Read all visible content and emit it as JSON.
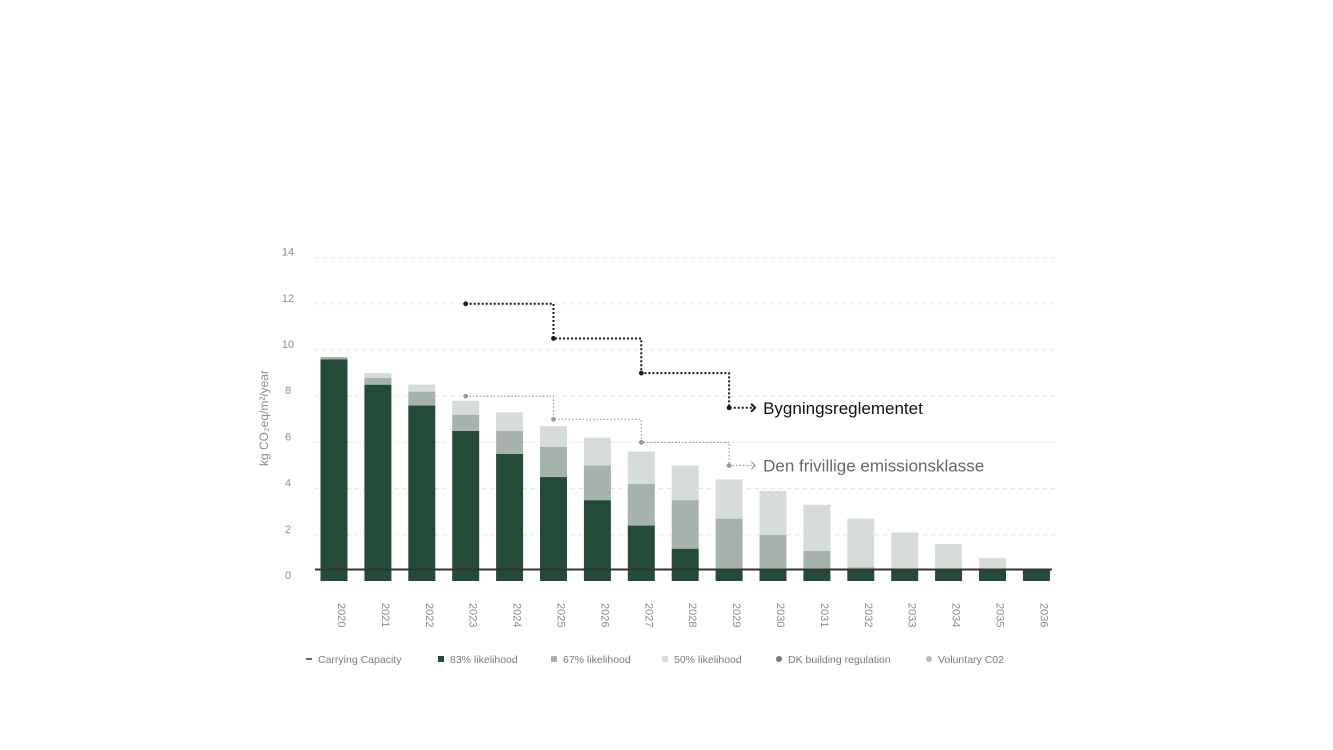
{
  "chart_data": {
    "type": "bar",
    "stacked": true,
    "ylabel": "kg CO₂eq/m²/year",
    "xlabel": "",
    "ylim": [
      0,
      14
    ],
    "yticks": [
      0,
      2,
      4,
      6,
      8,
      10,
      12,
      14
    ],
    "grid": true,
    "categories": [
      "2020",
      "2021",
      "2022",
      "2023",
      "2024",
      "2025",
      "2026",
      "2027",
      "2028",
      "2029",
      "2030",
      "2031",
      "2032",
      "2033",
      "2034",
      "2035",
      "2036"
    ],
    "series": [
      {
        "name": "83% likelihood",
        "color": "#244a38",
        "values": [
          9.6,
          8.5,
          7.6,
          6.5,
          5.5,
          4.5,
          3.5,
          2.4,
          1.4,
          0.5,
          0.5,
          0.5,
          0.5,
          0.5,
          0.5,
          0.5,
          0.5
        ]
      },
      {
        "name": "67% likelihood",
        "color": "#a6b3ad",
        "values": [
          0.1,
          0.3,
          0.6,
          0.7,
          1.0,
          1.3,
          1.5,
          1.8,
          2.1,
          2.2,
          1.5,
          0.8,
          0.1,
          0.0,
          0.0,
          0.0,
          0.0
        ]
      },
      {
        "name": "50% likelihood",
        "color": "#d6ddd9",
        "values": [
          0.0,
          0.2,
          0.3,
          0.6,
          0.8,
          0.9,
          1.2,
          1.4,
          1.5,
          1.7,
          1.9,
          2.0,
          2.1,
          1.6,
          1.1,
          0.5,
          0.0
        ]
      }
    ],
    "carrying_capacity": {
      "name": "Carrying Capacity",
      "value": 0.5,
      "color": "#333333"
    },
    "dk_building_regulation": {
      "name": "DK building regulation",
      "color": "#1a1a1a",
      "x": [
        "2023",
        "2025",
        "2027",
        "2029"
      ],
      "values": [
        12.0,
        10.5,
        9.0,
        7.5
      ],
      "annotation": "Bygningsreglementet"
    },
    "voluntary_co2": {
      "name": "Voluntary C02",
      "color": "#9a9a9a",
      "x": [
        "2023",
        "2025",
        "2027",
        "2029"
      ],
      "values": [
        8.0,
        7.0,
        6.0,
        5.0
      ],
      "annotation": "Den frivillige emissionsklasse"
    },
    "legend_position": "bottom",
    "legend": [
      {
        "label": "Carrying Capacity",
        "marker": "line",
        "color": "#333333"
      },
      {
        "label": "83% likelihood",
        "marker": "square",
        "color": "#244a38"
      },
      {
        "label": "67% likelihood",
        "marker": "square",
        "color": "#a6b3ad"
      },
      {
        "label": "50% likelihood",
        "marker": "square",
        "color": "#d6ddd9"
      },
      {
        "label": "DK building regulation",
        "marker": "dot",
        "color": "#777777"
      },
      {
        "label": "Voluntary C02",
        "marker": "dot",
        "color": "#bbbbbb"
      }
    ]
  }
}
